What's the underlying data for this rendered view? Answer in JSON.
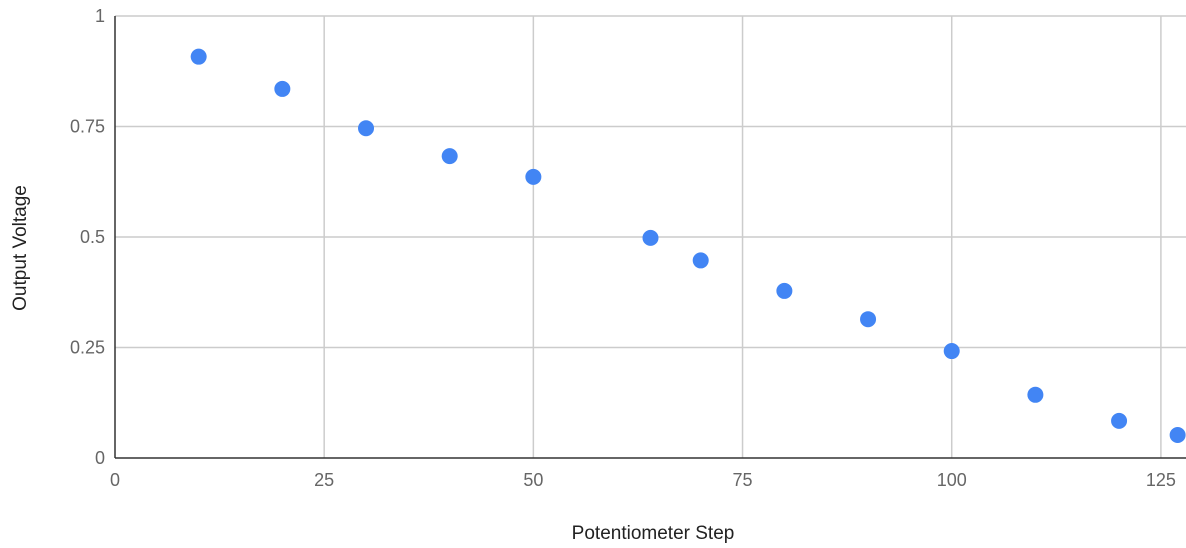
{
  "chart_data": {
    "type": "scatter",
    "title": "",
    "xlabel": "Potentiometer Step",
    "ylabel": "Output Voltage",
    "xlim": [
      0,
      128
    ],
    "ylim": [
      0,
      1
    ],
    "x_ticks": [
      0,
      25,
      50,
      75,
      100,
      125
    ],
    "y_ticks": [
      0,
      0.25,
      0.5,
      0.75,
      1
    ],
    "x_tick_labels": [
      "0",
      "25",
      "50",
      "75",
      "100",
      "125"
    ],
    "y_tick_labels": [
      "0",
      "0.25",
      "0.5",
      "0.75",
      "1"
    ],
    "grid": true,
    "legend": "none",
    "marker_color": "#4285f4",
    "series": [
      {
        "points": [
          {
            "x": 10,
            "y": 0.908
          },
          {
            "x": 20,
            "y": 0.835
          },
          {
            "x": 30,
            "y": 0.746
          },
          {
            "x": 40,
            "y": 0.683
          },
          {
            "x": 50,
            "y": 0.636
          },
          {
            "x": 64,
            "y": 0.498
          },
          {
            "x": 70,
            "y": 0.447
          },
          {
            "x": 80,
            "y": 0.378
          },
          {
            "x": 90,
            "y": 0.314
          },
          {
            "x": 100,
            "y": 0.242
          },
          {
            "x": 110,
            "y": 0.143
          },
          {
            "x": 120,
            "y": 0.084
          },
          {
            "x": 127,
            "y": 0.052
          }
        ]
      }
    ]
  }
}
